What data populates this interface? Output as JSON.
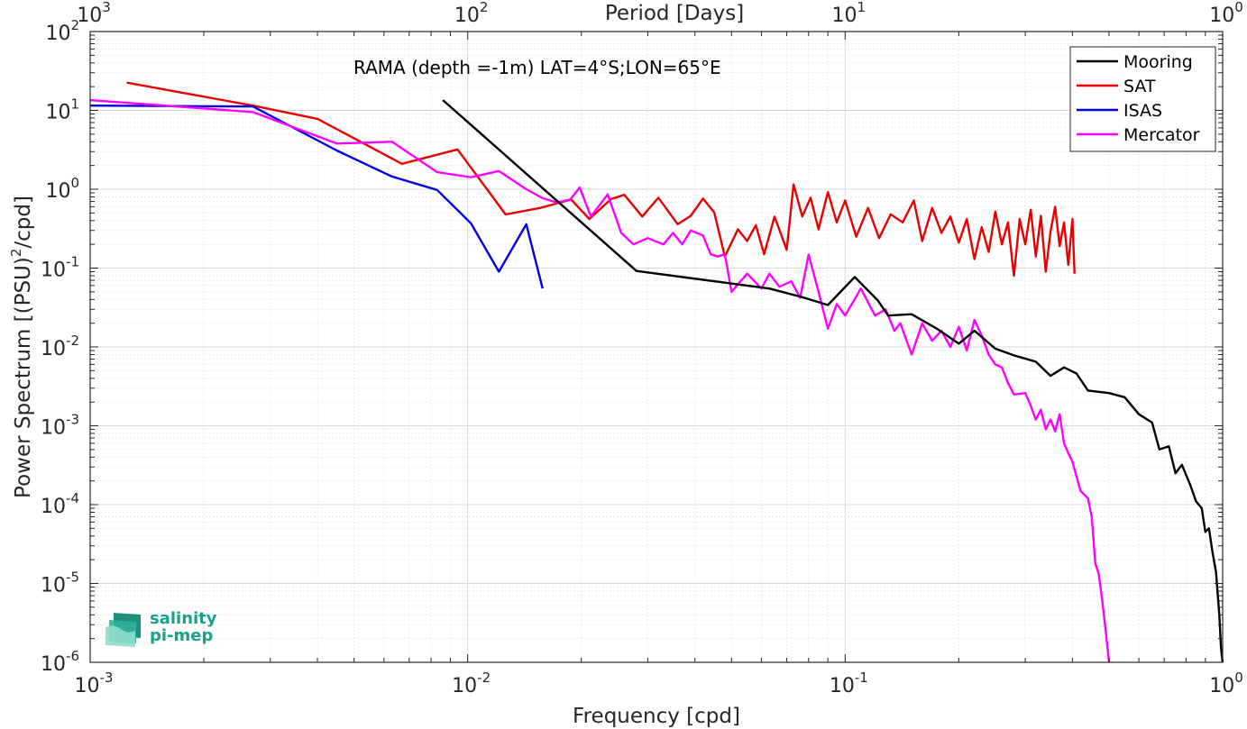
{
  "chart_data": {
    "type": "line",
    "title": "RAMA (depth =-1m) LAT=4°S;LON=65°E",
    "xlabel": "Frequency [cpd]",
    "ylabel_main": "Power Spectrum [(PSU)",
    "ylabel_sup": "2",
    "ylabel_tail": "/cpd]",
    "top_xlabel": "Period [Days]",
    "x_scale": "log",
    "y_scale": "log",
    "xlim": [
      0.001,
      1
    ],
    "ylim": [
      1e-06,
      100
    ],
    "grid": true,
    "legend_position": "top-right",
    "x_ticks": [
      {
        "base": "10",
        "exp": "-3",
        "value": 0.001
      },
      {
        "base": "10",
        "exp": "-2",
        "value": 0.01
      },
      {
        "base": "10",
        "exp": "-1",
        "value": 0.1
      },
      {
        "base": "10",
        "exp": "0",
        "value": 1
      }
    ],
    "y_ticks": [
      {
        "base": "10",
        "exp": "2",
        "value": 100
      },
      {
        "base": "10",
        "exp": "1",
        "value": 10
      },
      {
        "base": "10",
        "exp": "0",
        "value": 1
      },
      {
        "base": "10",
        "exp": "-1",
        "value": 0.1
      },
      {
        "base": "10",
        "exp": "-2",
        "value": 0.01
      },
      {
        "base": "10",
        "exp": "-3",
        "value": 0.001
      },
      {
        "base": "10",
        "exp": "-4",
        "value": 0.0001
      },
      {
        "base": "10",
        "exp": "-5",
        "value": 1e-05
      },
      {
        "base": "10",
        "exp": "-6",
        "value": 1e-06
      }
    ],
    "top_ticks": [
      {
        "base": "10",
        "exp": "3",
        "freq": 0.001
      },
      {
        "base": "10",
        "exp": "2",
        "freq": 0.01
      },
      {
        "base": "10",
        "exp": "1",
        "freq": 0.1
      },
      {
        "base": "10",
        "exp": "0",
        "freq": 1
      }
    ],
    "series": [
      {
        "name": "Mooring",
        "color": "#000000",
        "points": [
          [
            0.0086,
            13.5
          ],
          [
            0.028,
            0.092
          ],
          [
            0.063,
            0.055
          ],
          [
            0.078,
            0.042
          ],
          [
            0.09,
            0.034
          ],
          [
            0.106,
            0.077
          ],
          [
            0.122,
            0.039
          ],
          [
            0.13,
            0.025
          ],
          [
            0.15,
            0.026
          ],
          [
            0.175,
            0.017
          ],
          [
            0.2,
            0.011
          ],
          [
            0.22,
            0.016
          ],
          [
            0.25,
            0.0095
          ],
          [
            0.28,
            0.0078
          ],
          [
            0.32,
            0.0065
          ],
          [
            0.35,
            0.0043
          ],
          [
            0.38,
            0.0055
          ],
          [
            0.41,
            0.0046
          ],
          [
            0.44,
            0.0028
          ],
          [
            0.5,
            0.0026
          ],
          [
            0.55,
            0.0023
          ],
          [
            0.6,
            0.0014
          ],
          [
            0.65,
            0.0011
          ],
          [
            0.68,
            0.0005
          ],
          [
            0.72,
            0.00055
          ],
          [
            0.75,
            0.00025
          ],
          [
            0.78,
            0.00032
          ],
          [
            0.82,
            0.00018
          ],
          [
            0.85,
            0.00011
          ],
          [
            0.88,
            9e-05
          ],
          [
            0.9,
            4.5e-05
          ],
          [
            0.92,
            5e-05
          ],
          [
            0.94,
            2.5e-05
          ],
          [
            0.96,
            1.4e-05
          ],
          [
            0.98,
            4e-06
          ],
          [
            0.99,
            1.5e-06
          ],
          [
            1.0,
            1e-06
          ]
        ]
      },
      {
        "name": "SAT",
        "color": "#e60000",
        "points": [
          [
            0.00125,
            22.5
          ],
          [
            0.0027,
            11.5
          ],
          [
            0.004,
            7.8
          ],
          [
            0.0067,
            2.1
          ],
          [
            0.0094,
            3.2
          ],
          [
            0.0126,
            0.48
          ],
          [
            0.0156,
            0.58
          ],
          [
            0.0188,
            0.74
          ],
          [
            0.021,
            0.42
          ],
          [
            0.024,
            0.75
          ],
          [
            0.026,
            0.85
          ],
          [
            0.029,
            0.45
          ],
          [
            0.032,
            0.78
          ],
          [
            0.036,
            0.36
          ],
          [
            0.039,
            0.46
          ],
          [
            0.042,
            0.76
          ],
          [
            0.045,
            0.51
          ],
          [
            0.048,
            0.14
          ],
          [
            0.052,
            0.31
          ],
          [
            0.055,
            0.22
          ],
          [
            0.058,
            0.35
          ],
          [
            0.061,
            0.15
          ],
          [
            0.065,
            0.45
          ],
          [
            0.07,
            0.17
          ],
          [
            0.073,
            1.15
          ],
          [
            0.077,
            0.45
          ],
          [
            0.081,
            0.78
          ],
          [
            0.085,
            0.31
          ],
          [
            0.09,
            0.92
          ],
          [
            0.095,
            0.38
          ],
          [
            0.1,
            0.72
          ],
          [
            0.107,
            0.25
          ],
          [
            0.115,
            0.58
          ],
          [
            0.123,
            0.24
          ],
          [
            0.132,
            0.48
          ],
          [
            0.142,
            0.38
          ],
          [
            0.152,
            0.72
          ],
          [
            0.16,
            0.22
          ],
          [
            0.17,
            0.58
          ],
          [
            0.18,
            0.28
          ],
          [
            0.19,
            0.45
          ],
          [
            0.2,
            0.21
          ],
          [
            0.21,
            0.42
          ],
          [
            0.22,
            0.13
          ],
          [
            0.23,
            0.33
          ],
          [
            0.24,
            0.16
          ],
          [
            0.25,
            0.52
          ],
          [
            0.26,
            0.2
          ],
          [
            0.27,
            0.38
          ],
          [
            0.28,
            0.08
          ],
          [
            0.29,
            0.42
          ],
          [
            0.3,
            0.2
          ],
          [
            0.31,
            0.55
          ],
          [
            0.32,
            0.14
          ],
          [
            0.33,
            0.46
          ],
          [
            0.34,
            0.09
          ],
          [
            0.35,
            0.29
          ],
          [
            0.36,
            0.6
          ],
          [
            0.37,
            0.19
          ],
          [
            0.38,
            0.38
          ],
          [
            0.39,
            0.11
          ],
          [
            0.4,
            0.42
          ],
          [
            0.405,
            0.085
          ]
        ]
      },
      {
        "name": "ISAS",
        "color": "#0000e6",
        "points": [
          [
            0.001,
            11.5
          ],
          [
            0.0027,
            11.2
          ],
          [
            0.0045,
            3.1
          ],
          [
            0.0063,
            1.45
          ],
          [
            0.0083,
            0.98
          ],
          [
            0.0102,
            0.37
          ],
          [
            0.0121,
            0.09
          ],
          [
            0.0143,
            0.36
          ],
          [
            0.0158,
            0.055
          ]
        ]
      },
      {
        "name": "Mercator",
        "color": "#ff00ff",
        "points": [
          [
            0.001,
            13.5
          ],
          [
            0.0027,
            9.5
          ],
          [
            0.0045,
            3.8
          ],
          [
            0.0063,
            4.0
          ],
          [
            0.0083,
            1.65
          ],
          [
            0.0102,
            1.42
          ],
          [
            0.0121,
            1.7
          ],
          [
            0.0143,
            1.0
          ],
          [
            0.0158,
            0.77
          ],
          [
            0.0172,
            0.68
          ],
          [
            0.0187,
            0.74
          ],
          [
            0.0198,
            1.05
          ],
          [
            0.0212,
            0.45
          ],
          [
            0.0235,
            0.86
          ],
          [
            0.0255,
            0.28
          ],
          [
            0.0275,
            0.2
          ],
          [
            0.03,
            0.24
          ],
          [
            0.033,
            0.2
          ],
          [
            0.035,
            0.28
          ],
          [
            0.037,
            0.2
          ],
          [
            0.039,
            0.3
          ],
          [
            0.042,
            0.26
          ],
          [
            0.044,
            0.15
          ],
          [
            0.046,
            0.14
          ],
          [
            0.048,
            0.15
          ],
          [
            0.05,
            0.05
          ],
          [
            0.055,
            0.085
          ],
          [
            0.06,
            0.055
          ],
          [
            0.063,
            0.085
          ],
          [
            0.067,
            0.058
          ],
          [
            0.072,
            0.068
          ],
          [
            0.076,
            0.042
          ],
          [
            0.08,
            0.148
          ],
          [
            0.085,
            0.05
          ],
          [
            0.09,
            0.017
          ],
          [
            0.095,
            0.035
          ],
          [
            0.1,
            0.025
          ],
          [
            0.11,
            0.055
          ],
          [
            0.12,
            0.025
          ],
          [
            0.128,
            0.03
          ],
          [
            0.135,
            0.016
          ],
          [
            0.14,
            0.02
          ],
          [
            0.15,
            0.008
          ],
          [
            0.16,
            0.02
          ],
          [
            0.17,
            0.012
          ],
          [
            0.18,
            0.016
          ],
          [
            0.19,
            0.01
          ],
          [
            0.2,
            0.018
          ],
          [
            0.21,
            0.009
          ],
          [
            0.22,
            0.022
          ],
          [
            0.23,
            0.014
          ],
          [
            0.24,
            0.008
          ],
          [
            0.25,
            0.006
          ],
          [
            0.26,
            0.0055
          ],
          [
            0.27,
            0.0035
          ],
          [
            0.28,
            0.0025
          ],
          [
            0.3,
            0.0026
          ],
          [
            0.31,
            0.0018
          ],
          [
            0.32,
            0.0012
          ],
          [
            0.33,
            0.0016
          ],
          [
            0.34,
            0.0009
          ],
          [
            0.35,
            0.0012
          ],
          [
            0.36,
            0.00085
          ],
          [
            0.37,
            0.0014
          ],
          [
            0.38,
            0.0006
          ],
          [
            0.39,
            0.00045
          ],
          [
            0.4,
            0.00035
          ],
          [
            0.42,
            0.00015
          ],
          [
            0.44,
            0.00012
          ],
          [
            0.45,
            7e-05
          ],
          [
            0.46,
            1.8e-05
          ],
          [
            0.47,
            1.3e-05
          ],
          [
            0.48,
            6e-06
          ],
          [
            0.49,
            2.5e-06
          ],
          [
            0.5,
            1e-06
          ]
        ]
      }
    ]
  },
  "logo": {
    "line1": "salinity",
    "line2": "pi-mep"
  }
}
